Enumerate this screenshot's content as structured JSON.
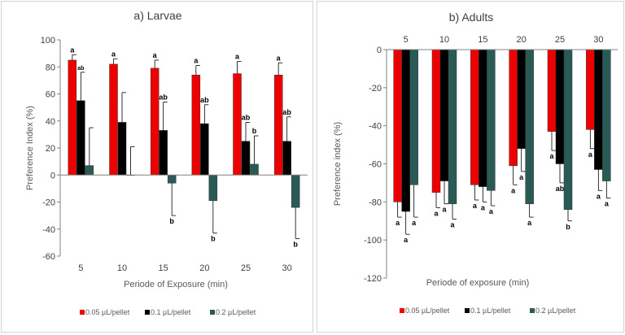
{
  "colors": {
    "s1": "#ee0000",
    "s2": "#000000",
    "s3": "#2a5a56"
  },
  "chart_data": [
    {
      "type": "bar",
      "title": "a) Larvae",
      "xlabel": "Periode of Exposure (min)",
      "ylabel": "Preference Index (%)",
      "ylim": [
        -60,
        100
      ],
      "yticks": [
        "-60",
        "-40",
        "-20",
        "0",
        "20",
        "40",
        "60",
        "80",
        "100"
      ],
      "categories": [
        "5",
        "10",
        "15",
        "20",
        "25",
        "30"
      ],
      "legend_position": "bottom",
      "series": [
        {
          "name": "0.05 µL/pellet",
          "values": [
            85,
            82,
            79,
            74,
            75,
            74
          ],
          "errors": [
            4,
            4,
            6,
            7,
            9,
            9
          ],
          "labels": [
            "a",
            "a",
            "a",
            "a",
            "a",
            "a"
          ]
        },
        {
          "name": "0.1 µL/pellet",
          "values": [
            55,
            39,
            33,
            38,
            25,
            25
          ],
          "errors": [
            21,
            22,
            21,
            14,
            14,
            18
          ],
          "labels": [
            "ab",
            "",
            "ab",
            "ab",
            "ab",
            "ab"
          ]
        },
        {
          "name": "0.2 µL/pellet",
          "values": [
            7,
            0,
            -6,
            -19,
            8,
            -24
          ],
          "errors": [
            28,
            21,
            24,
            24,
            21,
            23
          ],
          "labels": [
            "",
            "",
            "b",
            "b",
            "b",
            "b"
          ]
        }
      ]
    },
    {
      "type": "bar",
      "title": "b) Adults",
      "xlabel": "Periode of exposure (min)",
      "ylabel": "Preference index (%)",
      "ylim": [
        -120,
        0
      ],
      "yticks": [
        "-120",
        "-100",
        "-80",
        "-60",
        "-40",
        "-20",
        "0"
      ],
      "categories": [
        "5",
        "10",
        "15",
        "20",
        "25",
        "30"
      ],
      "legend_position": "bottom",
      "series": [
        {
          "name": "0.05 µL/pellet",
          "values": [
            -80,
            -75,
            -71,
            -61,
            -43,
            -42
          ],
          "errors": [
            8,
            8,
            8,
            10,
            10,
            10
          ],
          "labels": [
            "a",
            "a",
            "a",
            "a",
            "a",
            "a"
          ]
        },
        {
          "name": "0.1 µL/pellet",
          "values": [
            -85,
            -69,
            -72,
            -52,
            -60,
            -63
          ],
          "errors": [
            12,
            12,
            8,
            12,
            10,
            11
          ],
          "labels": [
            "a",
            "a",
            "a",
            "a",
            "ab",
            "a"
          ]
        },
        {
          "name": "0.2 µL/pellet",
          "values": [
            -71,
            -81,
            -74,
            -81,
            -84,
            -69
          ],
          "errors": [
            17,
            8,
            8,
            7,
            6,
            9
          ],
          "labels": [
            "a",
            "a",
            "a",
            "a",
            "b",
            "a"
          ]
        }
      ]
    }
  ]
}
